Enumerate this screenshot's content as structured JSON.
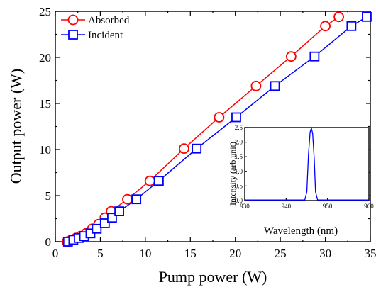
{
  "chart_data": [
    {
      "type": "line",
      "title": "",
      "xlabel": "Pump power (W)",
      "ylabel": "Output power (W)",
      "xlim": [
        0,
        35
      ],
      "ylim": [
        0,
        25
      ],
      "x_ticks": [
        "0",
        "5",
        "10",
        "15",
        "20",
        "25",
        "30",
        "35"
      ],
      "y_ticks": [
        "0",
        "5",
        "10",
        "15",
        "20",
        "25"
      ],
      "legend_position": "top-left",
      "series": [
        {
          "name": "Absorbed",
          "color": "#ff0000",
          "marker": "circle",
          "x": [
            1.3,
            1.8,
            2.3,
            2.8,
            3.4,
            4.1,
            4.8,
            5.5,
            6.2,
            8.0,
            10.5,
            14.3,
            18.2,
            22.3,
            26.2,
            30.0,
            31.5
          ],
          "y": [
            0.0,
            0.2,
            0.4,
            0.6,
            0.9,
            1.4,
            1.9,
            2.6,
            3.3,
            4.6,
            6.6,
            10.1,
            13.5,
            16.9,
            20.1,
            23.4,
            24.4
          ]
        },
        {
          "name": "Incident",
          "color": "#0000ff",
          "marker": "square",
          "x": [
            1.4,
            2.0,
            2.6,
            3.2,
            3.9,
            4.6,
            5.5,
            6.3,
            7.1,
            9.0,
            11.5,
            15.7,
            20.1,
            24.4,
            28.8,
            32.9,
            34.6
          ],
          "y": [
            0.0,
            0.2,
            0.4,
            0.6,
            0.9,
            1.4,
            2.0,
            2.6,
            3.3,
            4.6,
            6.6,
            10.1,
            13.5,
            16.9,
            20.1,
            23.4,
            24.4
          ]
        }
      ]
    },
    {
      "type": "line",
      "title": "",
      "xlabel": "Wavelength (nm)",
      "ylabel": "Intensity (arb.unit)",
      "xlim": [
        930,
        960
      ],
      "ylim": [
        0,
        2.5
      ],
      "x_ticks": [
        "930",
        "940",
        "950",
        "960"
      ],
      "y_ticks": [
        "0.0",
        "0.5",
        "1.0",
        "1.5",
        "2.0",
        "2.5"
      ],
      "series": [
        {
          "color": "#0000ff",
          "x": [
            930,
            944.5,
            945.0,
            945.4,
            945.8,
            946.1,
            946.4,
            946.8,
            947.1,
            947.6,
            960
          ],
          "y": [
            0.02,
            0.02,
            0.3,
            1.6,
            2.35,
            2.48,
            2.3,
            1.4,
            0.3,
            0.02,
            0.02
          ]
        }
      ]
    }
  ]
}
